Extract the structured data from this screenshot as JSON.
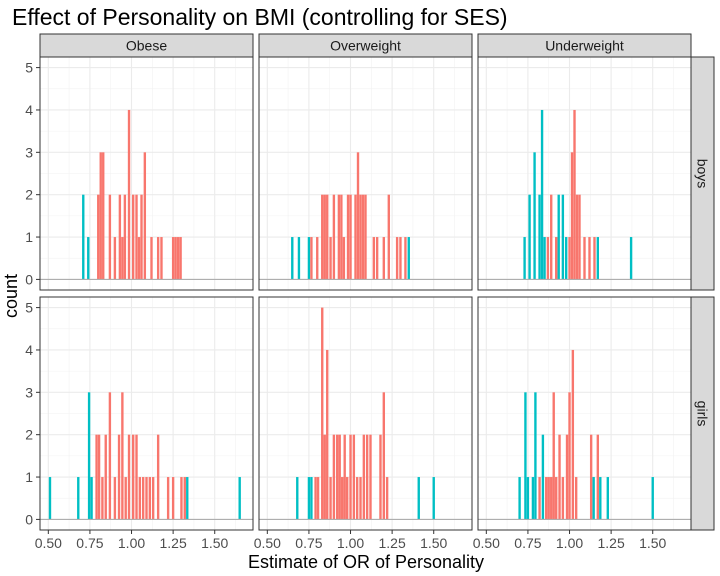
{
  "chart_data": {
    "type": "bar",
    "title": "Effect of Personality on BMI (controlling for SES)",
    "xlabel": "Estimate of OR of Personality",
    "ylabel": "count",
    "xlim": [
      0.45,
      1.73
    ],
    "ylim": [
      -0.25,
      5.25
    ],
    "x_ticks": [
      0.5,
      0.75,
      1.0,
      1.25,
      1.5
    ],
    "x_tick_labels": [
      "0.50",
      "0.75",
      "1.00",
      "1.25",
      "1.50"
    ],
    "y_ticks": [
      0,
      1,
      2,
      3,
      4,
      5
    ],
    "bin_width": 0.0143,
    "grid": true,
    "columns": [
      "Obese",
      "Overweight",
      "Underweight"
    ],
    "rows": [
      "boys",
      "girls"
    ],
    "colors": {
      "red": "#F8766D",
      "teal": "#00BFC4"
    },
    "panels": [
      {
        "row": "boys",
        "col": "Obese",
        "bars": [
          {
            "x": 0.71,
            "count": 2,
            "color": "teal"
          },
          {
            "x": 0.74,
            "count": 1,
            "color": "teal"
          },
          {
            "x": 0.8,
            "count": 2,
            "color": "red"
          },
          {
            "x": 0.815,
            "count": 3,
            "color": "red"
          },
          {
            "x": 0.83,
            "count": 3,
            "color": "red"
          },
          {
            "x": 0.87,
            "count": 2,
            "color": "red"
          },
          {
            "x": 0.9,
            "count": 1,
            "color": "red"
          },
          {
            "x": 0.93,
            "count": 2,
            "color": "red"
          },
          {
            "x": 0.945,
            "count": 1,
            "color": "red"
          },
          {
            "x": 0.96,
            "count": 2,
            "color": "red"
          },
          {
            "x": 0.985,
            "count": 4,
            "color": "red"
          },
          {
            "x": 1.01,
            "count": 2,
            "color": "red"
          },
          {
            "x": 1.03,
            "count": 2,
            "color": "red"
          },
          {
            "x": 1.045,
            "count": 1,
            "color": "red"
          },
          {
            "x": 1.06,
            "count": 2,
            "color": "red"
          },
          {
            "x": 1.08,
            "count": 3,
            "color": "red"
          },
          {
            "x": 1.12,
            "count": 1,
            "color": "red"
          },
          {
            "x": 1.16,
            "count": 1,
            "color": "red"
          },
          {
            "x": 1.18,
            "count": 1,
            "color": "red"
          },
          {
            "x": 1.25,
            "count": 1,
            "color": "red"
          },
          {
            "x": 1.265,
            "count": 1,
            "color": "red"
          },
          {
            "x": 1.28,
            "count": 1,
            "color": "red"
          },
          {
            "x": 1.295,
            "count": 1,
            "color": "red"
          }
        ]
      },
      {
        "row": "boys",
        "col": "Overweight",
        "bars": [
          {
            "x": 0.65,
            "count": 1,
            "color": "teal"
          },
          {
            "x": 0.69,
            "count": 1,
            "color": "teal"
          },
          {
            "x": 0.75,
            "count": 1,
            "color": "teal"
          },
          {
            "x": 0.765,
            "count": 1,
            "color": "red"
          },
          {
            "x": 0.8,
            "count": 1,
            "color": "red"
          },
          {
            "x": 0.83,
            "count": 2,
            "color": "red"
          },
          {
            "x": 0.845,
            "count": 2,
            "color": "red"
          },
          {
            "x": 0.86,
            "count": 2,
            "color": "red"
          },
          {
            "x": 0.88,
            "count": 1,
            "color": "red"
          },
          {
            "x": 0.9,
            "count": 2,
            "color": "red"
          },
          {
            "x": 0.93,
            "count": 2,
            "color": "red"
          },
          {
            "x": 0.945,
            "count": 2,
            "color": "red"
          },
          {
            "x": 0.96,
            "count": 1,
            "color": "red"
          },
          {
            "x": 0.985,
            "count": 2,
            "color": "red"
          },
          {
            "x": 1.0,
            "count": 2,
            "color": "red"
          },
          {
            "x": 1.03,
            "count": 2,
            "color": "red"
          },
          {
            "x": 1.045,
            "count": 3,
            "color": "red"
          },
          {
            "x": 1.06,
            "count": 2,
            "color": "red"
          },
          {
            "x": 1.075,
            "count": 2,
            "color": "red"
          },
          {
            "x": 1.09,
            "count": 2,
            "color": "red"
          },
          {
            "x": 1.14,
            "count": 1,
            "color": "red"
          },
          {
            "x": 1.16,
            "count": 1,
            "color": "red"
          },
          {
            "x": 1.2,
            "count": 1,
            "color": "red"
          },
          {
            "x": 1.23,
            "count": 2,
            "color": "red"
          },
          {
            "x": 1.28,
            "count": 1,
            "color": "red"
          },
          {
            "x": 1.3,
            "count": 1,
            "color": "red"
          },
          {
            "x": 1.33,
            "count": 1,
            "color": "red"
          },
          {
            "x": 1.35,
            "count": 1,
            "color": "teal"
          }
        ]
      },
      {
        "row": "boys",
        "col": "Underweight",
        "bars": [
          {
            "x": 0.73,
            "count": 1,
            "color": "teal"
          },
          {
            "x": 0.76,
            "count": 2,
            "color": "teal"
          },
          {
            "x": 0.79,
            "count": 3,
            "color": "teal"
          },
          {
            "x": 0.82,
            "count": 2,
            "color": "teal"
          },
          {
            "x": 0.835,
            "count": 4,
            "color": "teal"
          },
          {
            "x": 0.85,
            "count": 1,
            "color": "teal"
          },
          {
            "x": 0.87,
            "count": 1,
            "color": "red"
          },
          {
            "x": 0.89,
            "count": 2,
            "color": "red"
          },
          {
            "x": 0.92,
            "count": 1,
            "color": "red"
          },
          {
            "x": 0.935,
            "count": 2,
            "color": "teal"
          },
          {
            "x": 0.96,
            "count": 2,
            "color": "teal"
          },
          {
            "x": 0.98,
            "count": 1,
            "color": "teal"
          },
          {
            "x": 1.0,
            "count": 1,
            "color": "red"
          },
          {
            "x": 1.015,
            "count": 3,
            "color": "red"
          },
          {
            "x": 1.03,
            "count": 4,
            "color": "red"
          },
          {
            "x": 1.045,
            "count": 2,
            "color": "red"
          },
          {
            "x": 1.06,
            "count": 2,
            "color": "red"
          },
          {
            "x": 1.09,
            "count": 1,
            "color": "red"
          },
          {
            "x": 1.12,
            "count": 1,
            "color": "red"
          },
          {
            "x": 1.15,
            "count": 1,
            "color": "red"
          },
          {
            "x": 1.17,
            "count": 1,
            "color": "teal"
          },
          {
            "x": 1.37,
            "count": 1,
            "color": "teal"
          }
        ]
      },
      {
        "row": "girls",
        "col": "Obese",
        "bars": [
          {
            "x": 0.51,
            "count": 1,
            "color": "teal"
          },
          {
            "x": 0.68,
            "count": 1,
            "color": "teal"
          },
          {
            "x": 0.745,
            "count": 3,
            "color": "teal"
          },
          {
            "x": 0.76,
            "count": 1,
            "color": "teal"
          },
          {
            "x": 0.79,
            "count": 2,
            "color": "red"
          },
          {
            "x": 0.805,
            "count": 2,
            "color": "red"
          },
          {
            "x": 0.825,
            "count": 1,
            "color": "red"
          },
          {
            "x": 0.845,
            "count": 2,
            "color": "red"
          },
          {
            "x": 0.87,
            "count": 3,
            "color": "red"
          },
          {
            "x": 0.9,
            "count": 1,
            "color": "red"
          },
          {
            "x": 0.925,
            "count": 2,
            "color": "red"
          },
          {
            "x": 0.945,
            "count": 3,
            "color": "red"
          },
          {
            "x": 0.965,
            "count": 1,
            "color": "red"
          },
          {
            "x": 0.985,
            "count": 2,
            "color": "red"
          },
          {
            "x": 1.01,
            "count": 2,
            "color": "red"
          },
          {
            "x": 1.03,
            "count": 2,
            "color": "red"
          },
          {
            "x": 1.05,
            "count": 1,
            "color": "red"
          },
          {
            "x": 1.07,
            "count": 1,
            "color": "red"
          },
          {
            "x": 1.09,
            "count": 1,
            "color": "red"
          },
          {
            "x": 1.11,
            "count": 1,
            "color": "red"
          },
          {
            "x": 1.13,
            "count": 1,
            "color": "red"
          },
          {
            "x": 1.16,
            "count": 2,
            "color": "red"
          },
          {
            "x": 1.22,
            "count": 1,
            "color": "red"
          },
          {
            "x": 1.25,
            "count": 1,
            "color": "red"
          },
          {
            "x": 1.3,
            "count": 1,
            "color": "red"
          },
          {
            "x": 1.32,
            "count": 1,
            "color": "red"
          },
          {
            "x": 1.335,
            "count": 1,
            "color": "teal"
          },
          {
            "x": 1.65,
            "count": 1,
            "color": "teal"
          }
        ]
      },
      {
        "row": "girls",
        "col": "Overweight",
        "bars": [
          {
            "x": 0.68,
            "count": 1,
            "color": "teal"
          },
          {
            "x": 0.75,
            "count": 1,
            "color": "teal"
          },
          {
            "x": 0.765,
            "count": 1,
            "color": "teal"
          },
          {
            "x": 0.79,
            "count": 1,
            "color": "red"
          },
          {
            "x": 0.805,
            "count": 1,
            "color": "red"
          },
          {
            "x": 0.83,
            "count": 5,
            "color": "red"
          },
          {
            "x": 0.845,
            "count": 2,
            "color": "red"
          },
          {
            "x": 0.86,
            "count": 4,
            "color": "red"
          },
          {
            "x": 0.88,
            "count": 1,
            "color": "red"
          },
          {
            "x": 0.9,
            "count": 2,
            "color": "red"
          },
          {
            "x": 0.92,
            "count": 2,
            "color": "red"
          },
          {
            "x": 0.935,
            "count": 2,
            "color": "red"
          },
          {
            "x": 0.95,
            "count": 1,
            "color": "red"
          },
          {
            "x": 0.965,
            "count": 2,
            "color": "red"
          },
          {
            "x": 0.98,
            "count": 1,
            "color": "red"
          },
          {
            "x": 1.0,
            "count": 2,
            "color": "red"
          },
          {
            "x": 1.02,
            "count": 2,
            "color": "red"
          },
          {
            "x": 1.04,
            "count": 1,
            "color": "red"
          },
          {
            "x": 1.06,
            "count": 1,
            "color": "red"
          },
          {
            "x": 1.08,
            "count": 2,
            "color": "red"
          },
          {
            "x": 1.1,
            "count": 2,
            "color": "red"
          },
          {
            "x": 1.12,
            "count": 2,
            "color": "red"
          },
          {
            "x": 1.18,
            "count": 2,
            "color": "red"
          },
          {
            "x": 1.2,
            "count": 3,
            "color": "red"
          },
          {
            "x": 1.22,
            "count": 1,
            "color": "red"
          },
          {
            "x": 1.41,
            "count": 1,
            "color": "teal"
          },
          {
            "x": 1.5,
            "count": 1,
            "color": "teal"
          }
        ]
      },
      {
        "row": "girls",
        "col": "Underweight",
        "bars": [
          {
            "x": 0.7,
            "count": 1,
            "color": "teal"
          },
          {
            "x": 0.735,
            "count": 3,
            "color": "teal"
          },
          {
            "x": 0.75,
            "count": 1,
            "color": "teal"
          },
          {
            "x": 0.78,
            "count": 1,
            "color": "teal"
          },
          {
            "x": 0.795,
            "count": 3,
            "color": "teal"
          },
          {
            "x": 0.82,
            "count": 1,
            "color": "red"
          },
          {
            "x": 0.84,
            "count": 2,
            "color": "teal"
          },
          {
            "x": 0.86,
            "count": 1,
            "color": "red"
          },
          {
            "x": 0.875,
            "count": 1,
            "color": "red"
          },
          {
            "x": 0.89,
            "count": 1,
            "color": "red"
          },
          {
            "x": 0.905,
            "count": 3,
            "color": "red"
          },
          {
            "x": 0.92,
            "count": 1,
            "color": "red"
          },
          {
            "x": 0.94,
            "count": 2,
            "color": "red"
          },
          {
            "x": 0.96,
            "count": 1,
            "color": "red"
          },
          {
            "x": 0.985,
            "count": 2,
            "color": "red"
          },
          {
            "x": 1.0,
            "count": 3,
            "color": "red"
          },
          {
            "x": 1.02,
            "count": 4,
            "color": "red"
          },
          {
            "x": 1.04,
            "count": 1,
            "color": "red"
          },
          {
            "x": 1.13,
            "count": 2,
            "color": "red"
          },
          {
            "x": 1.145,
            "count": 1,
            "color": "teal"
          },
          {
            "x": 1.17,
            "count": 2,
            "color": "red"
          },
          {
            "x": 1.185,
            "count": 1,
            "color": "teal"
          },
          {
            "x": 1.23,
            "count": 1,
            "color": "teal"
          },
          {
            "x": 1.5,
            "count": 1,
            "color": "teal"
          }
        ]
      }
    ]
  }
}
